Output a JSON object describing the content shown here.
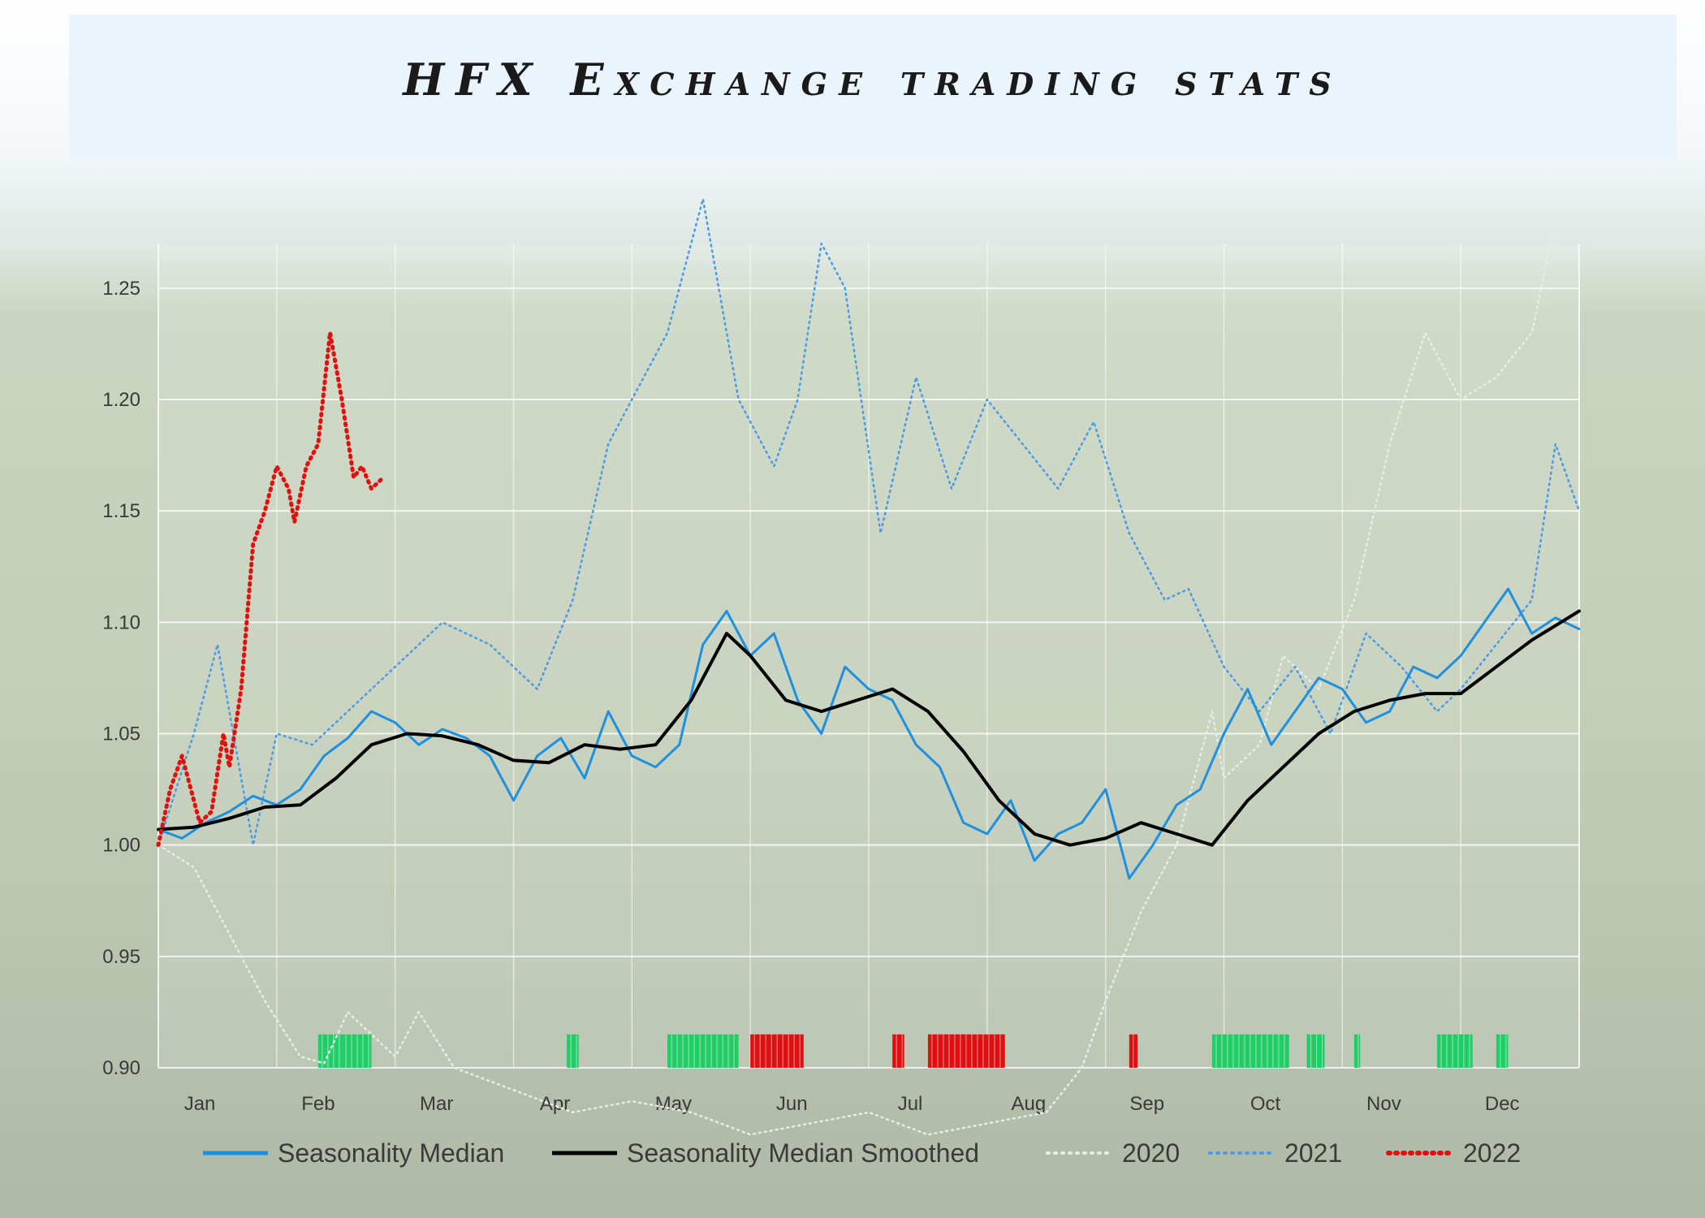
{
  "page": {
    "title": "HFX Exchange trading stats"
  },
  "chart_data": {
    "type": "line",
    "title": "HFX Exchange trading stats",
    "xlabel": "",
    "ylabel": "",
    "ylim": [
      0.9,
      1.27
    ],
    "xlim": [
      0,
      12
    ],
    "y_ticks": [
      "1.25",
      "1.20",
      "1.15",
      "1.10",
      "1.05",
      "1.00",
      "0.95",
      "0.90"
    ],
    "y_tick_values": [
      1.25,
      1.2,
      1.15,
      1.1,
      1.05,
      1.0,
      0.95,
      0.9
    ],
    "months": [
      "Jan",
      "Feb",
      "Mar",
      "Apr",
      "May",
      "Jun",
      "Jul",
      "Aug",
      "Sep",
      "Oct",
      "Nov",
      "Dec"
    ],
    "grid": true,
    "legend_position": "bottom",
    "series": [
      {
        "name": "Seasonality Median",
        "style": "solid",
        "color": "#1e90e0",
        "x": [
          0,
          0.2,
          0.4,
          0.6,
          0.8,
          1.0,
          1.2,
          1.4,
          1.6,
          1.8,
          2.0,
          2.2,
          2.4,
          2.6,
          2.8,
          3.0,
          3.2,
          3.4,
          3.6,
          3.8,
          4.0,
          4.2,
          4.4,
          4.6,
          4.8,
          5.0,
          5.2,
          5.4,
          5.6,
          5.8,
          6.0,
          6.2,
          6.4,
          6.6,
          6.8,
          7.0,
          7.2,
          7.4,
          7.6,
          7.8,
          8.0,
          8.2,
          8.4,
          8.6,
          8.8,
          9.0,
          9.2,
          9.4,
          9.6,
          9.8,
          10.0,
          10.2,
          10.4,
          10.6,
          10.8,
          11.0,
          11.2,
          11.4,
          11.6,
          11.8,
          12.0
        ],
        "y": [
          1.007,
          1.003,
          1.01,
          1.015,
          1.022,
          1.018,
          1.025,
          1.04,
          1.048,
          1.06,
          1.055,
          1.045,
          1.052,
          1.048,
          1.04,
          1.02,
          1.04,
          1.048,
          1.03,
          1.06,
          1.04,
          1.035,
          1.045,
          1.09,
          1.105,
          1.085,
          1.095,
          1.065,
          1.05,
          1.08,
          1.07,
          1.065,
          1.045,
          1.035,
          1.01,
          1.005,
          1.02,
          0.993,
          1.005,
          1.01,
          1.025,
          0.985,
          1.0,
          1.018,
          1.025,
          1.05,
          1.07,
          1.045,
          1.06,
          1.075,
          1.07,
          1.055,
          1.06,
          1.08,
          1.075,
          1.085,
          1.1,
          1.115,
          1.095,
          1.102,
          1.097
        ]
      },
      {
        "name": "Seasonality Median Smoothed",
        "style": "solid",
        "color": "#000000",
        "x": [
          0,
          0.3,
          0.6,
          0.9,
          1.2,
          1.5,
          1.8,
          2.1,
          2.4,
          2.7,
          3.0,
          3.3,
          3.6,
          3.9,
          4.2,
          4.5,
          4.8,
          5.0,
          5.3,
          5.6,
          5.9,
          6.2,
          6.5,
          6.8,
          7.1,
          7.4,
          7.7,
          8.0,
          8.3,
          8.6,
          8.9,
          9.2,
          9.5,
          9.8,
          10.1,
          10.4,
          10.7,
          11.0,
          11.3,
          11.6,
          12.0
        ],
        "y": [
          1.007,
          1.008,
          1.012,
          1.017,
          1.018,
          1.03,
          1.045,
          1.05,
          1.049,
          1.045,
          1.038,
          1.037,
          1.045,
          1.043,
          1.045,
          1.065,
          1.095,
          1.085,
          1.065,
          1.06,
          1.065,
          1.07,
          1.06,
          1.042,
          1.02,
          1.005,
          1.0,
          1.003,
          1.01,
          1.005,
          1.0,
          1.02,
          1.035,
          1.05,
          1.06,
          1.065,
          1.068,
          1.068,
          1.08,
          1.092,
          1.105
        ]
      },
      {
        "name": "2020",
        "style": "dotted",
        "color": "#e6ece8",
        "x": [
          0,
          0.3,
          0.6,
          0.9,
          1.2,
          1.4,
          1.6,
          2.0,
          2.2,
          2.5,
          3.0,
          3.5,
          4.0,
          4.5,
          5.0,
          5.5,
          6.0,
          6.5,
          7.0,
          7.5,
          7.8,
          8.0,
          8.3,
          8.6,
          8.9,
          9.0,
          9.3,
          9.5,
          9.8,
          10.1,
          10.4,
          10.7,
          11.0,
          11.3,
          11.6,
          11.8
        ],
        "y": [
          1.0,
          0.99,
          0.96,
          0.93,
          0.905,
          0.902,
          0.925,
          0.905,
          0.925,
          0.9,
          0.89,
          0.88,
          0.885,
          0.88,
          0.87,
          0.875,
          0.88,
          0.87,
          0.875,
          0.88,
          0.9,
          0.93,
          0.97,
          1.0,
          1.06,
          1.03,
          1.045,
          1.085,
          1.07,
          1.11,
          1.18,
          1.23,
          1.2,
          1.21,
          1.23,
          1.28
        ]
      },
      {
        "name": "2021",
        "style": "dotted",
        "color": "#4a9ae8",
        "x": [
          0,
          0.3,
          0.5,
          0.8,
          1.0,
          1.3,
          1.6,
          2.0,
          2.4,
          2.8,
          3.2,
          3.5,
          3.8,
          4.0,
          4.3,
          4.6,
          4.9,
          5.2,
          5.4,
          5.6,
          5.8,
          6.1,
          6.4,
          6.7,
          7.0,
          7.3,
          7.6,
          7.9,
          8.2,
          8.5,
          8.7,
          9.0,
          9.3,
          9.6,
          9.9,
          10.2,
          10.5,
          10.8,
          11.0,
          11.3,
          11.6,
          11.8,
          12.0
        ],
        "y": [
          1.0,
          1.05,
          1.09,
          1.0,
          1.05,
          1.045,
          1.06,
          1.08,
          1.1,
          1.09,
          1.07,
          1.11,
          1.18,
          1.2,
          1.23,
          1.29,
          1.2,
          1.17,
          1.2,
          1.27,
          1.25,
          1.14,
          1.21,
          1.16,
          1.2,
          1.18,
          1.16,
          1.19,
          1.14,
          1.11,
          1.115,
          1.08,
          1.06,
          1.08,
          1.05,
          1.095,
          1.08,
          1.06,
          1.07,
          1.09,
          1.11,
          1.18,
          1.15
        ]
      },
      {
        "name": "2022",
        "style": "dotted",
        "color": "#e01010",
        "x": [
          0,
          0.1,
          0.2,
          0.25,
          0.35,
          0.45,
          0.55,
          0.6,
          0.7,
          0.8,
          0.9,
          1.0,
          1.1,
          1.15,
          1.25,
          1.35,
          1.45,
          1.55,
          1.65,
          1.72,
          1.8,
          1.9
        ],
        "y": [
          1.0,
          1.025,
          1.04,
          1.03,
          1.01,
          1.015,
          1.05,
          1.035,
          1.07,
          1.135,
          1.15,
          1.17,
          1.16,
          1.145,
          1.17,
          1.18,
          1.23,
          1.2,
          1.165,
          1.17,
          1.16,
          1.165
        ]
      }
    ],
    "signal_bars": {
      "green": [
        [
          1.35,
          1.55
        ],
        [
          1.55,
          1.8
        ],
        [
          3.45,
          3.55
        ],
        [
          4.3,
          4.9
        ],
        [
          8.9,
          9.55
        ],
        [
          9.7,
          9.85
        ],
        [
          10.1,
          10.15
        ],
        [
          10.8,
          11.1
        ],
        [
          11.3,
          11.4
        ]
      ],
      "red": [
        [
          5.0,
          5.45
        ],
        [
          6.2,
          6.3
        ],
        [
          6.5,
          7.15
        ],
        [
          8.2,
          8.27
        ]
      ]
    }
  },
  "legend": {
    "items": [
      {
        "label": "Seasonality Median",
        "color": "#1e90e0",
        "style": "solid"
      },
      {
        "label": "Seasonality Median Smoothed",
        "color": "#000000",
        "style": "solid"
      },
      {
        "label": "2020",
        "color": "#e6ece8",
        "style": "dotted"
      },
      {
        "label": "2021",
        "color": "#4a9ae8",
        "style": "dotted"
      },
      {
        "label": "2022",
        "color": "#e01010",
        "style": "dotted"
      }
    ]
  }
}
